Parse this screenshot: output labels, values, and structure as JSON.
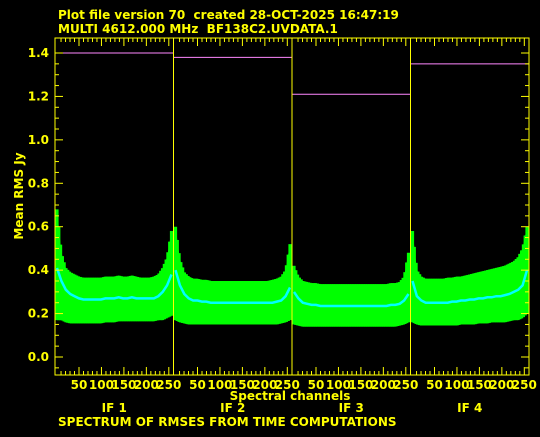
{
  "header": {
    "line1": "Plot file version 70  created 28-OCT-2025 16:47:19",
    "line2": "MULTI 4612.000 MHz  BF138C2.UVDATA.1"
  },
  "footer": {
    "caption": "SPECTRUM OF RMSES FROM TIME COMPUTATIONS"
  },
  "colors": {
    "axis": "#ffff00",
    "error_band": "#00ff00",
    "mean_line": "#00ffff",
    "limit_line": "#ff88ff",
    "background": "#000000"
  },
  "chart_data": {
    "type": "line",
    "title": "",
    "xlabel": "Spectral channels",
    "ylabel": "Mean RMS Jy",
    "ylim": [
      -0.1,
      1.45
    ],
    "yticks": [
      "0.0",
      "0.2",
      "0.4",
      "0.6",
      "0.8",
      "1.0",
      "1.2",
      "1.4"
    ],
    "ytick_values": [
      0.0,
      0.2,
      0.4,
      0.6,
      0.8,
      1.0,
      1.2,
      1.4
    ],
    "xticks": [
      "50",
      "100",
      "150",
      "200",
      "250"
    ],
    "xtick_values": [
      50,
      100,
      150,
      200,
      250
    ],
    "channels_per_if": 256,
    "panels": [
      {
        "name": "IF 1",
        "limit": 1.4,
        "mean": [
          0.41,
          0.35,
          0.31,
          0.29,
          0.28,
          0.27,
          0.265,
          0.265,
          0.265,
          0.265,
          0.265,
          0.27,
          0.27,
          0.27,
          0.275,
          0.27,
          0.27,
          0.275,
          0.27,
          0.27,
          0.27,
          0.27,
          0.27,
          0.28,
          0.3,
          0.33,
          0.38
        ],
        "upper": [
          0.68,
          0.48,
          0.41,
          0.39,
          0.38,
          0.37,
          0.365,
          0.365,
          0.365,
          0.365,
          0.365,
          0.37,
          0.37,
          0.37,
          0.375,
          0.37,
          0.37,
          0.375,
          0.37,
          0.365,
          0.365,
          0.365,
          0.37,
          0.38,
          0.41,
          0.46,
          0.58
        ],
        "lower": [
          0.17,
          0.17,
          0.16,
          0.155,
          0.155,
          0.155,
          0.155,
          0.155,
          0.155,
          0.155,
          0.155,
          0.16,
          0.16,
          0.16,
          0.165,
          0.165,
          0.165,
          0.165,
          0.165,
          0.165,
          0.165,
          0.165,
          0.165,
          0.17,
          0.17,
          0.18,
          0.19
        ]
      },
      {
        "name": "IF 2",
        "limit": 1.38,
        "mean": [
          0.4,
          0.33,
          0.29,
          0.27,
          0.26,
          0.26,
          0.255,
          0.255,
          0.25,
          0.25,
          0.25,
          0.25,
          0.25,
          0.25,
          0.25,
          0.25,
          0.25,
          0.25,
          0.25,
          0.25,
          0.25,
          0.25,
          0.25,
          0.255,
          0.26,
          0.28,
          0.32
        ],
        "upper": [
          0.6,
          0.45,
          0.39,
          0.37,
          0.36,
          0.36,
          0.355,
          0.355,
          0.35,
          0.35,
          0.35,
          0.35,
          0.35,
          0.35,
          0.35,
          0.35,
          0.35,
          0.35,
          0.35,
          0.35,
          0.35,
          0.35,
          0.355,
          0.36,
          0.37,
          0.4,
          0.52
        ],
        "lower": [
          0.17,
          0.16,
          0.155,
          0.15,
          0.15,
          0.15,
          0.15,
          0.15,
          0.15,
          0.15,
          0.15,
          0.15,
          0.15,
          0.15,
          0.15,
          0.15,
          0.15,
          0.15,
          0.15,
          0.15,
          0.15,
          0.15,
          0.15,
          0.15,
          0.155,
          0.16,
          0.17
        ]
      },
      {
        "name": "IF 3",
        "limit": 1.21,
        "mean": [
          0.3,
          0.27,
          0.25,
          0.245,
          0.24,
          0.24,
          0.235,
          0.235,
          0.235,
          0.235,
          0.235,
          0.235,
          0.235,
          0.235,
          0.235,
          0.235,
          0.235,
          0.235,
          0.235,
          0.235,
          0.235,
          0.235,
          0.24,
          0.24,
          0.245,
          0.26,
          0.29
        ],
        "upper": [
          0.42,
          0.37,
          0.35,
          0.345,
          0.34,
          0.34,
          0.335,
          0.335,
          0.335,
          0.335,
          0.335,
          0.335,
          0.335,
          0.335,
          0.335,
          0.335,
          0.335,
          0.335,
          0.335,
          0.335,
          0.335,
          0.335,
          0.34,
          0.34,
          0.345,
          0.37,
          0.48
        ],
        "lower": [
          0.15,
          0.145,
          0.14,
          0.14,
          0.14,
          0.14,
          0.14,
          0.14,
          0.14,
          0.14,
          0.14,
          0.14,
          0.14,
          0.14,
          0.14,
          0.14,
          0.14,
          0.14,
          0.14,
          0.14,
          0.14,
          0.14,
          0.14,
          0.14,
          0.145,
          0.15,
          0.16
        ]
      },
      {
        "name": "IF 4",
        "limit": 1.35,
        "mean": [
          0.35,
          0.28,
          0.26,
          0.25,
          0.25,
          0.25,
          0.25,
          0.25,
          0.25,
          0.255,
          0.255,
          0.26,
          0.26,
          0.265,
          0.265,
          0.27,
          0.27,
          0.275,
          0.275,
          0.28,
          0.28,
          0.285,
          0.29,
          0.3,
          0.31,
          0.33,
          0.4
        ],
        "upper": [
          0.58,
          0.4,
          0.37,
          0.36,
          0.36,
          0.36,
          0.36,
          0.36,
          0.365,
          0.365,
          0.37,
          0.37,
          0.375,
          0.38,
          0.385,
          0.39,
          0.395,
          0.4,
          0.405,
          0.41,
          0.415,
          0.42,
          0.43,
          0.44,
          0.46,
          0.5,
          0.6
        ],
        "lower": [
          0.16,
          0.15,
          0.145,
          0.145,
          0.145,
          0.145,
          0.145,
          0.145,
          0.145,
          0.145,
          0.145,
          0.15,
          0.15,
          0.15,
          0.15,
          0.155,
          0.155,
          0.155,
          0.16,
          0.16,
          0.16,
          0.16,
          0.165,
          0.17,
          0.17,
          0.18,
          0.2
        ]
      }
    ]
  }
}
